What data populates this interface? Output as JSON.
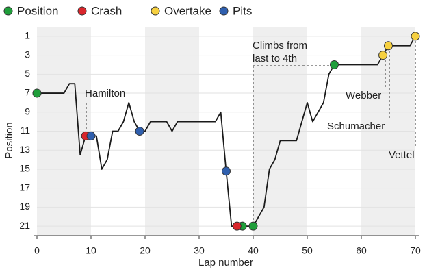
{
  "chart_data": {
    "type": "line",
    "x_label": "Lap number",
    "y_label": "Position",
    "xlim": [
      0,
      70
    ],
    "xticks": [
      0,
      10,
      20,
      30,
      40,
      50,
      60,
      70
    ],
    "ylim": [
      22,
      0
    ],
    "yticks": [
      1,
      3,
      5,
      7,
      9,
      11,
      13,
      15,
      17,
      19,
      21
    ],
    "grid": true,
    "shaded_bands": true,
    "legend": "top",
    "line": {
      "color": "#1a1a1a",
      "x": [
        0,
        5,
        6,
        7,
        8,
        9,
        10,
        11,
        12,
        13,
        14,
        15,
        16,
        17,
        18,
        19,
        20,
        21,
        24,
        25,
        26,
        33,
        34,
        35,
        36,
        37,
        38,
        40,
        41,
        42,
        43,
        44,
        45,
        48,
        49,
        50,
        51,
        53,
        54,
        55,
        63,
        64,
        65,
        69,
        70
      ],
      "values": [
        7,
        7,
        6,
        6,
        13.5,
        11.5,
        11.5,
        11.5,
        15,
        14,
        11,
        11,
        10,
        8,
        10,
        11,
        11,
        10,
        10,
        11,
        10,
        10,
        9,
        15.2,
        21,
        21,
        21,
        21,
        20,
        19,
        15,
        14,
        12,
        12,
        10,
        8,
        10,
        8,
        5,
        4,
        4,
        3,
        2,
        2,
        1
      ]
    },
    "series": [
      {
        "name": "Position",
        "color": "#1f9e3a",
        "x": [
          0,
          38,
          40,
          55
        ],
        "values": [
          7,
          21,
          21,
          4
        ]
      },
      {
        "name": "Crash",
        "color": "#d9262c",
        "x": [
          9,
          37
        ],
        "values": [
          11.5,
          21
        ]
      },
      {
        "name": "Overtake",
        "color": "#f6d040",
        "x": [
          64,
          65,
          70
        ],
        "values": [
          3,
          2,
          1
        ]
      },
      {
        "name": "Pits",
        "color": "#2f5fae",
        "x": [
          10,
          19,
          35
        ],
        "values": [
          11.5,
          11,
          15.2
        ]
      }
    ],
    "annotations": [
      [
        "Hamilton"
      ],
      [
        "Climbs from",
        "last to 4th"
      ],
      [
        "Webber"
      ],
      [
        "Schumacher"
      ],
      [
        "Vettel"
      ]
    ]
  }
}
